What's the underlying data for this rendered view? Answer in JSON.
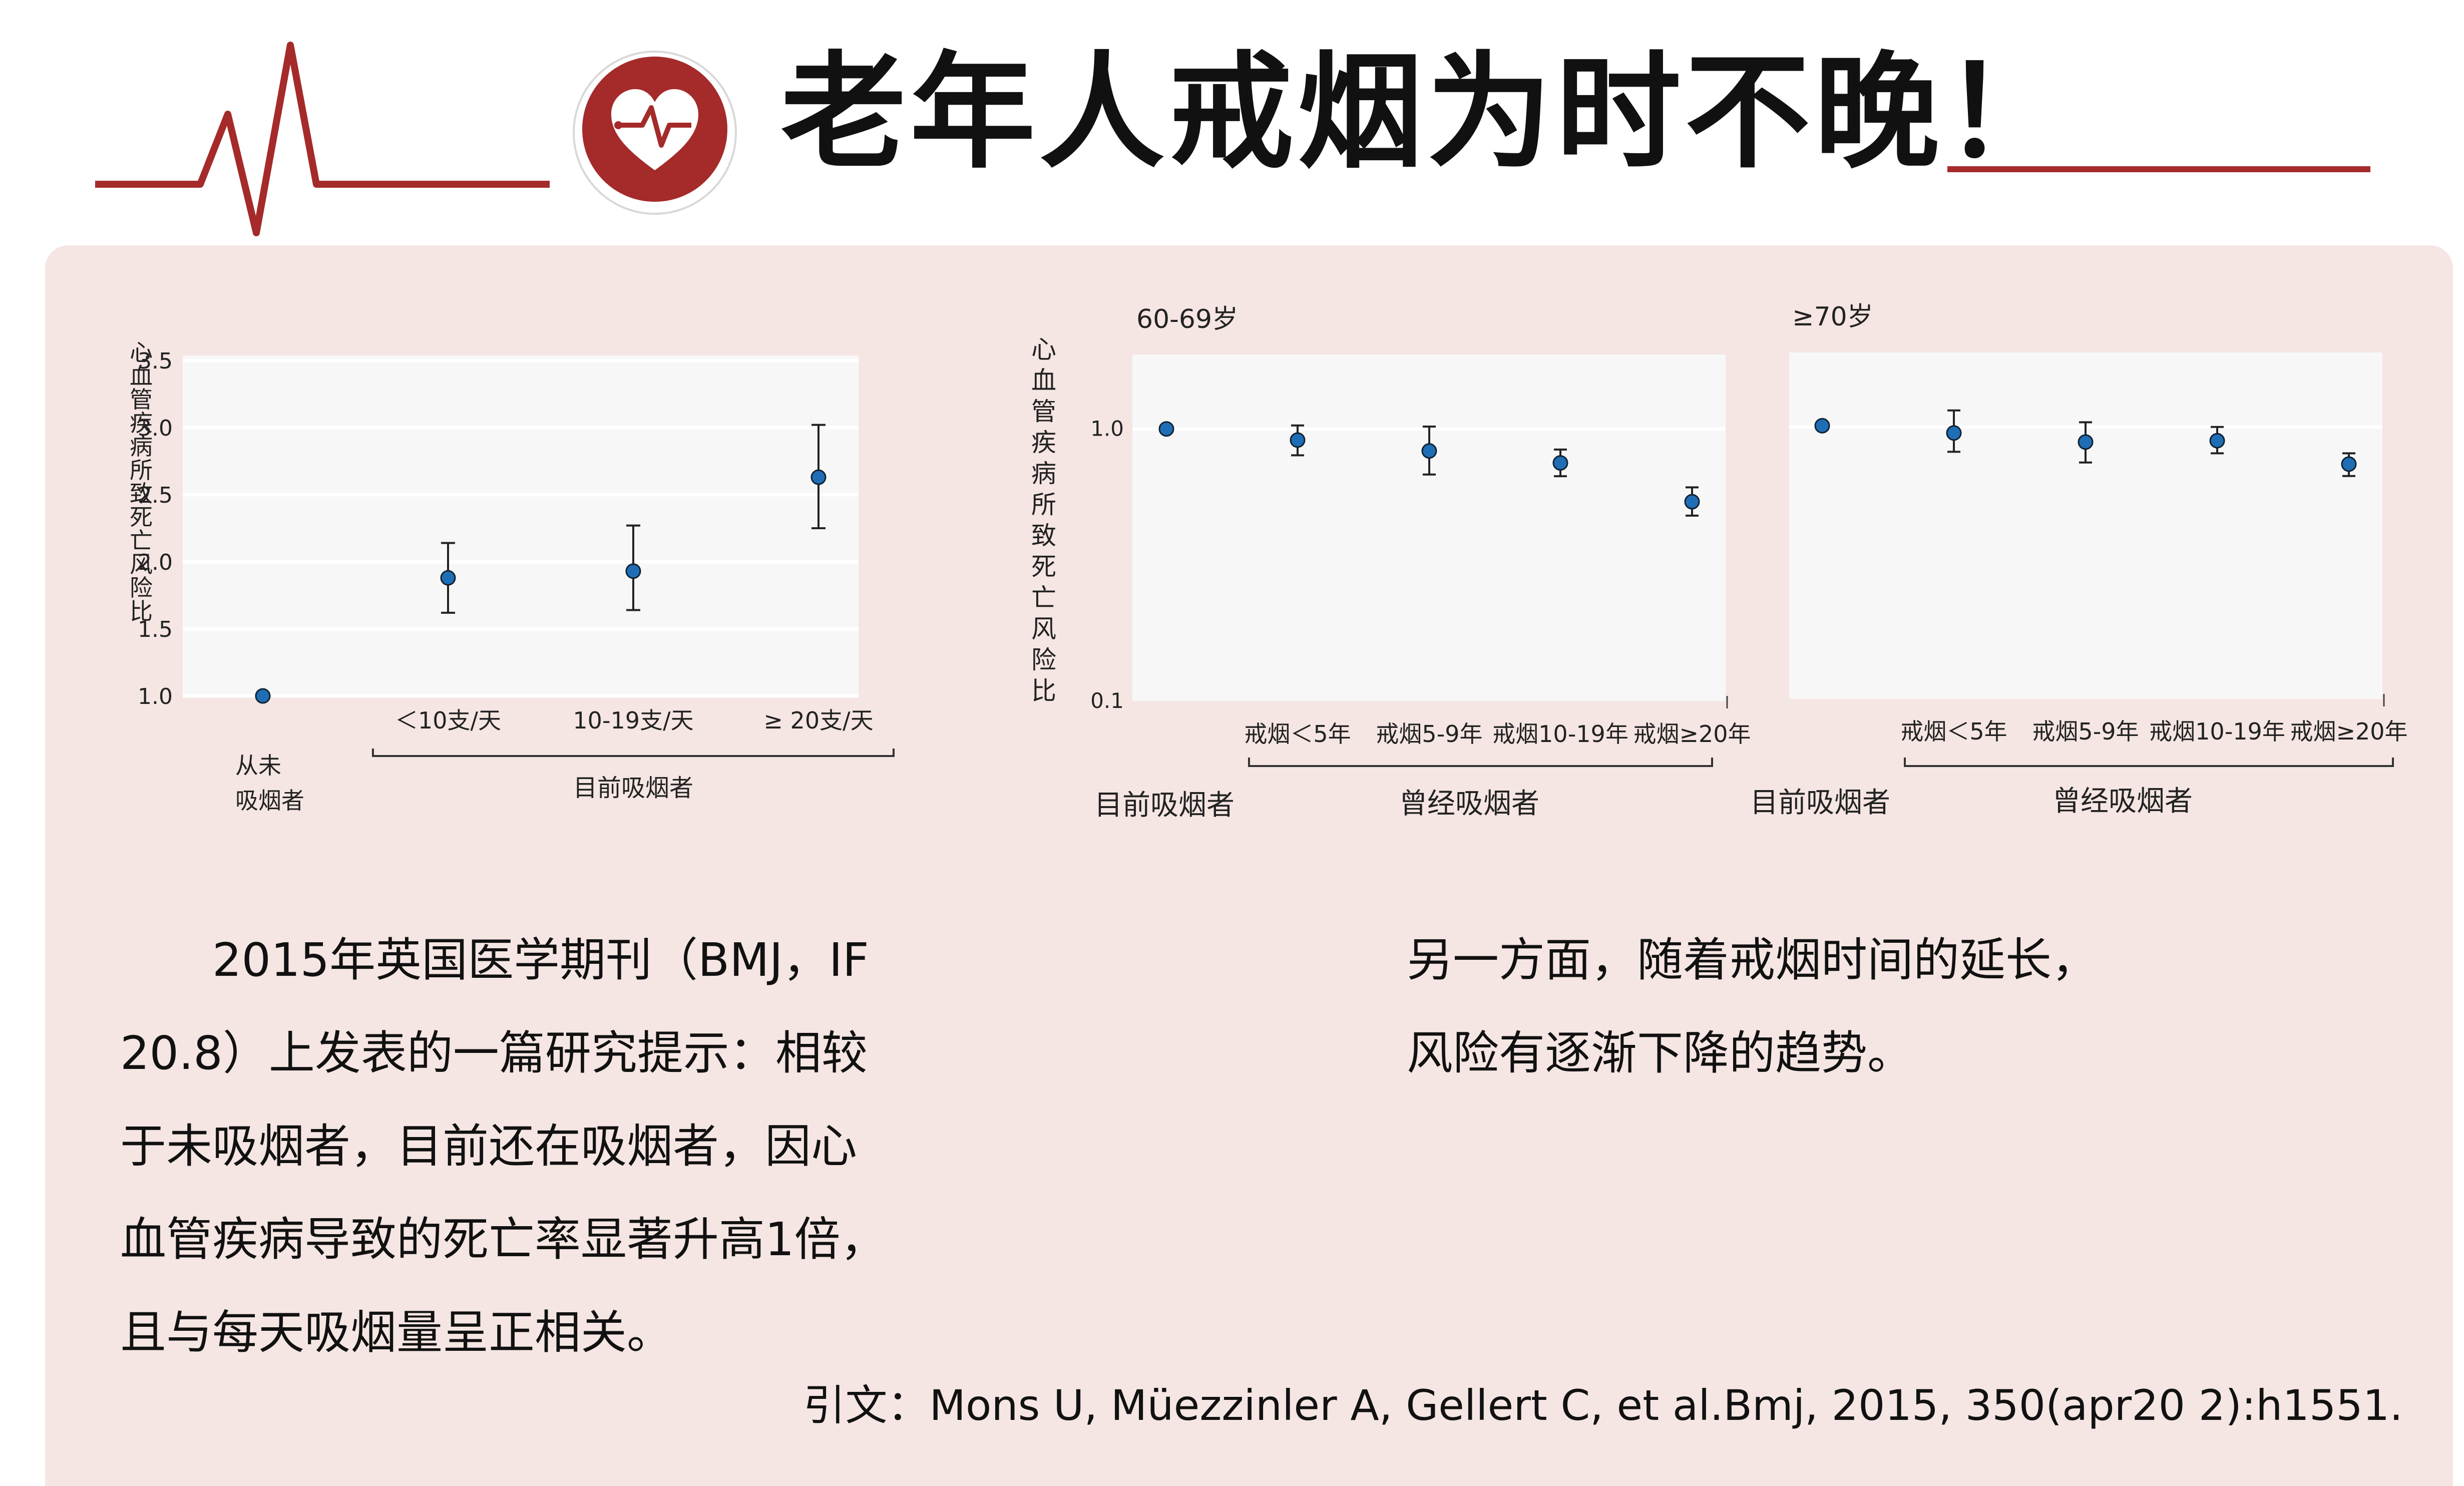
{
  "header": {
    "title": "老年人戒烟为时不晚！",
    "icon": "heart-pulse-icon",
    "accent_color": "#a52a2a"
  },
  "chart_data": [
    {
      "type": "scatter",
      "ylabel": "心血管疾病所致死亡风险比",
      "ylim": [
        1.0,
        3.5
      ],
      "yticks": [
        "1.0",
        "1.5",
        "2.0",
        "2.5",
        "3.0",
        "3.5"
      ],
      "categories": [
        "从未吸烟者",
        "＜10支/天",
        "10-19支/天",
        "≥ 20支/天"
      ],
      "group_label": "目前吸烟者",
      "points": [
        {
          "y": 1.0
        },
        {
          "y": 1.88,
          "lo": 1.62,
          "hi": 2.14
        },
        {
          "y": 1.93,
          "lo": 1.64,
          "hi": 2.27
        },
        {
          "y": 2.63,
          "lo": 2.25,
          "hi": 3.02
        }
      ],
      "marker_color": "#1f6eb5"
    },
    {
      "type": "scatter",
      "ylabel": "心血管疾病所致死亡风险比",
      "yscale": "log",
      "ylim": [
        0.1,
        1.8
      ],
      "yticks": [
        "1.0",
        "0.1"
      ],
      "panels": [
        {
          "title": "60-69岁",
          "categories": [
            "目前吸烟者",
            "戒烟＜5年",
            "戒烟5-9年",
            "戒烟10-19年",
            "戒烟≥20年"
          ],
          "group_label": "曾经吸烟者",
          "points": [
            {
              "y": 1.0
            },
            {
              "y": 0.91,
              "lo": 0.8,
              "hi": 1.03
            },
            {
              "y": 0.83,
              "lo": 0.68,
              "hi": 1.02
            },
            {
              "y": 0.75,
              "lo": 0.67,
              "hi": 0.84
            },
            {
              "y": 0.54,
              "lo": 0.48,
              "hi": 0.61
            }
          ]
        },
        {
          "title": "≥70岁",
          "categories": [
            "目前吸烟者",
            "戒烟＜5年",
            "戒烟5-9年",
            "戒烟10-19年",
            "戒烟≥20年"
          ],
          "group_label": "曾经吸烟者",
          "points": [
            {
              "y": 1.01
            },
            {
              "y": 0.95,
              "lo": 0.81,
              "hi": 1.15
            },
            {
              "y": 0.88,
              "lo": 0.74,
              "hi": 1.04
            },
            {
              "y": 0.89,
              "lo": 0.8,
              "hi": 1.0
            },
            {
              "y": 0.73,
              "lo": 0.66,
              "hi": 0.8
            }
          ]
        }
      ]
    }
  ],
  "text": {
    "left_paragraph": [
      "　　2015年英国医学期刊（BMJ，IF",
      "20.8）上发表的一篇研究提示：相较",
      "于未吸烟者，目前还在吸烟者，因心",
      "血管疾病导致的死亡率显著升高1倍，",
      "且与每天吸烟量呈正相关。"
    ],
    "right_paragraph": [
      "另一方面，随着戒烟时间的延长，",
      "风险有逐渐下降的趋势。"
    ],
    "citation": "引文：Mons U, Müezzinler A, Gellert C, et al.Bmj, 2015, 350(apr20 2):h1551."
  }
}
